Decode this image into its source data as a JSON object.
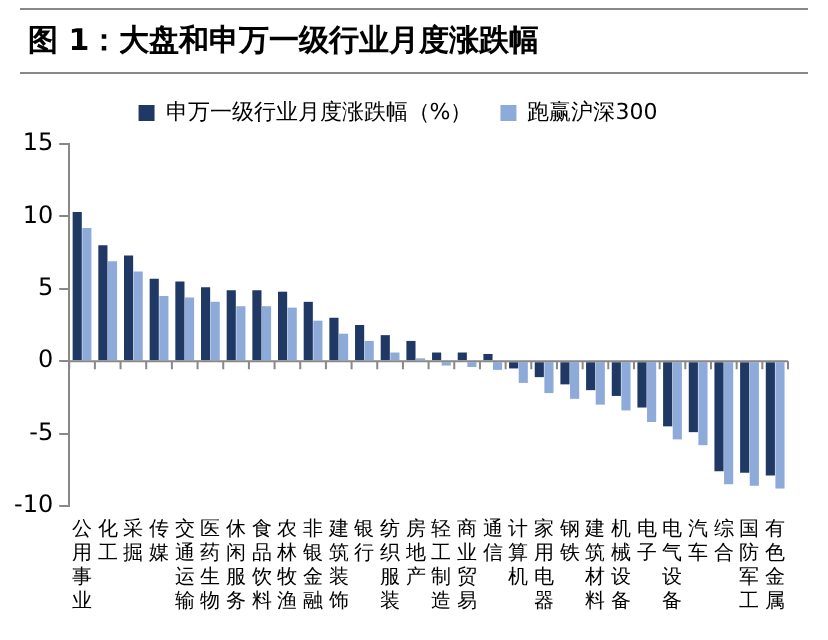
{
  "chart_data": {
    "type": "bar",
    "title": "图 1：大盘和申万一级行业月度涨跌幅",
    "categories": [
      "公用事业",
      "化工",
      "采掘",
      "传媒",
      "交通运输",
      "医药生物",
      "休闲服务",
      "食品饮料",
      "农林牧渔",
      "非银金融",
      "建筑装饰",
      "银行",
      "纺织服装",
      "房地产",
      "轻工制造",
      "商业贸易",
      "通信",
      "计算机",
      "家用电器",
      "钢铁",
      "建筑材料",
      "机械设备",
      "电子",
      "电气设备",
      "汽车",
      "综合",
      "国防军工",
      "有色金属"
    ],
    "series": [
      {
        "name": "申万一级行业月度涨跌幅（%）",
        "color": "#1f3864",
        "values": [
          10.3,
          8.0,
          7.3,
          5.7,
          5.5,
          5.1,
          4.9,
          4.9,
          4.8,
          4.1,
          3.0,
          2.5,
          1.8,
          1.4,
          0.6,
          0.6,
          0.5,
          -0.5,
          -1.1,
          -1.6,
          -2.0,
          -2.4,
          -3.2,
          -4.5,
          -4.9,
          -7.6,
          -7.7,
          -7.9
        ]
      },
      {
        "name": "跑赢沪深300",
        "color": "#8eaad8",
        "values": [
          9.2,
          6.9,
          6.2,
          4.5,
          4.4,
          4.1,
          3.8,
          3.8,
          3.7,
          2.8,
          1.9,
          1.4,
          0.6,
          0.2,
          -0.3,
          -0.4,
          -0.6,
          -1.5,
          -2.2,
          -2.6,
          -3.0,
          -3.4,
          -4.2,
          -5.4,
          -5.8,
          -8.5,
          -8.6,
          -8.8
        ]
      }
    ],
    "ylim": [
      -10,
      15
    ],
    "yticks": [
      -10,
      -5,
      0,
      5,
      10,
      15
    ],
    "legend": "top"
  }
}
